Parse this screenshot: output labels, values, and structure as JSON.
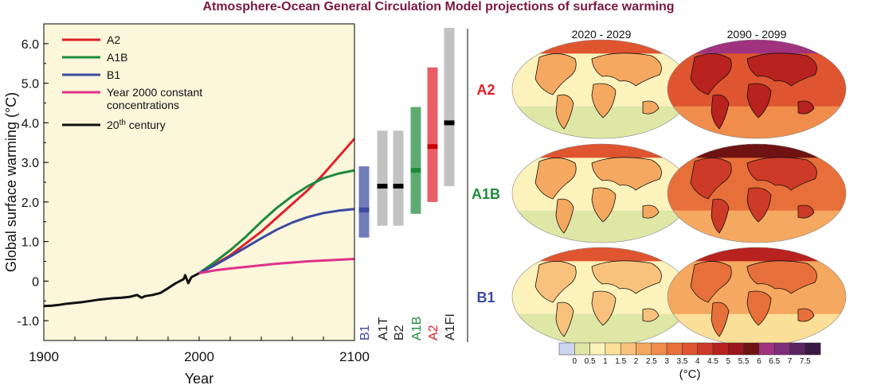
{
  "title": "Atmosphere-Ocean General Circulation Model projections of surface warming",
  "colors": {
    "A2": "#e0202a",
    "A1B": "#1f8a3c",
    "B1": "#3a4aa0",
    "constant": "#e0308a",
    "twentieth": "#111111",
    "panel_bg": "#fcf6da",
    "grey_bar": "#c2c2c2",
    "label_A1T": "#222222"
  },
  "chart_data": [
    {
      "type": "line",
      "xlabel": "Year",
      "ylabel": "Global surface warming (°C)",
      "xlim": [
        1900,
        2100
      ],
      "ylim": [
        -1.5,
        6.5
      ],
      "x_ticks": [
        "1900",
        "2000",
        "2100"
      ],
      "y_ticks": [
        "-1.0",
        "0",
        "1.0",
        "2.0",
        "3.0",
        "4.0",
        "5.0",
        "6.0"
      ],
      "y_tick_values": [
        -1.0,
        0,
        1.0,
        2.0,
        3.0,
        4.0,
        5.0,
        6.0
      ],
      "legend": {
        "placement": "top-left",
        "entries": [
          {
            "key": "A2",
            "label": "A2"
          },
          {
            "key": "A1B",
            "label": "A1B"
          },
          {
            "key": "B1",
            "label": "B1"
          },
          {
            "key": "constant",
            "label_line1": "Year 2000 constant",
            "label_line2": "concentrations"
          },
          {
            "key": "twentieth",
            "label_prefix": "20",
            "label_sup": "th",
            "label_suffix": " century"
          }
        ]
      },
      "series": [
        {
          "key": "twentieth",
          "x": [
            1900,
            1905,
            1910,
            1915,
            1920,
            1925,
            1930,
            1935,
            1940,
            1945,
            1950,
            1955,
            1960,
            1963,
            1965,
            1970,
            1975,
            1980,
            1985,
            1990,
            1991,
            1993,
            1995,
            2000
          ],
          "y": [
            -0.63,
            -0.62,
            -0.6,
            -0.57,
            -0.55,
            -0.53,
            -0.5,
            -0.47,
            -0.45,
            -0.43,
            -0.42,
            -0.4,
            -0.35,
            -0.42,
            -0.38,
            -0.35,
            -0.3,
            -0.18,
            -0.05,
            0.05,
            0.15,
            -0.05,
            0.1,
            0.2
          ]
        },
        {
          "key": "A2",
          "x": [
            2000,
            2010,
            2020,
            2030,
            2040,
            2050,
            2060,
            2070,
            2080,
            2090,
            2100
          ],
          "y": [
            0.2,
            0.42,
            0.65,
            0.95,
            1.25,
            1.6,
            1.95,
            2.3,
            2.7,
            3.15,
            3.6
          ]
        },
        {
          "key": "A1B",
          "x": [
            2000,
            2010,
            2020,
            2030,
            2040,
            2050,
            2060,
            2070,
            2080,
            2090,
            2100
          ],
          "y": [
            0.2,
            0.48,
            0.78,
            1.12,
            1.5,
            1.85,
            2.15,
            2.4,
            2.6,
            2.72,
            2.8
          ]
        },
        {
          "key": "B1",
          "x": [
            2000,
            2010,
            2020,
            2030,
            2040,
            2050,
            2060,
            2070,
            2080,
            2090,
            2100
          ],
          "y": [
            0.2,
            0.4,
            0.62,
            0.85,
            1.08,
            1.3,
            1.48,
            1.62,
            1.72,
            1.78,
            1.82
          ]
        },
        {
          "key": "constant",
          "x": [
            2000,
            2010,
            2020,
            2030,
            2040,
            2050,
            2060,
            2070,
            2080,
            2090,
            2100
          ],
          "y": [
            0.2,
            0.27,
            0.32,
            0.36,
            0.4,
            0.44,
            0.47,
            0.5,
            0.52,
            0.54,
            0.56
          ]
        }
      ]
    },
    {
      "type": "range-bar",
      "description_of_axis": "shares y axis with line chart",
      "bars": [
        {
          "label": "B1",
          "low": 1.1,
          "high": 2.9,
          "best": 1.8,
          "bar_color_key": "B1",
          "label_color_key": "B1"
        },
        {
          "label": "A1T",
          "low": 1.4,
          "high": 3.8,
          "best": 2.4,
          "bar_color_key": "grey_bar",
          "label_color_key": "label_A1T"
        },
        {
          "label": "B2",
          "low": 1.4,
          "high": 3.8,
          "best": 2.4,
          "bar_color_key": "grey_bar",
          "label_color_key": "label_A1T"
        },
        {
          "label": "A1B",
          "low": 1.7,
          "high": 4.4,
          "best": 2.8,
          "bar_color_key": "A1B",
          "label_color_key": "A1B"
        },
        {
          "label": "A2",
          "low": 2.0,
          "high": 5.4,
          "best": 3.4,
          "bar_color_key": "A2",
          "label_color_key": "A2"
        },
        {
          "label": "A1FI",
          "low": 2.4,
          "high": 6.4,
          "best": 4.0,
          "bar_color_key": "grey_bar",
          "label_color_key": "label_A1T"
        }
      ]
    },
    {
      "type": "heatmap",
      "columns": [
        "2020 - 2029",
        "2090 - 2099"
      ],
      "rows": [
        {
          "label": "A2",
          "color_key": "A2",
          "mean_warming": [
            0.8,
            3.6
          ]
        },
        {
          "label": "A1B",
          "color_key": "A1B",
          "mean_warming": [
            0.8,
            3.0
          ]
        },
        {
          "label": "B1",
          "color_key": "B1",
          "mean_warming": [
            0.7,
            2.0
          ]
        }
      ],
      "colorbar": {
        "unit_label": "(°C)",
        "tick_labels": [
          "0",
          "0.5",
          "1",
          "1.5",
          "2",
          "2.5",
          "3",
          "3.5",
          "4",
          "4.5",
          "5",
          "5.5",
          "6",
          "6.5",
          "7",
          "7.5"
        ],
        "colors": [
          "#ccd4f0",
          "#dfe7a6",
          "#fbf2bc",
          "#fbdf98",
          "#f9c27c",
          "#f5a860",
          "#f08d4c",
          "#e7703a",
          "#df5530",
          "#cd3a27",
          "#b8221f",
          "#9a161a",
          "#6e1212",
          "#a0327e",
          "#7e2d7a",
          "#5a2460",
          "#3a1a44"
        ]
      }
    }
  ]
}
